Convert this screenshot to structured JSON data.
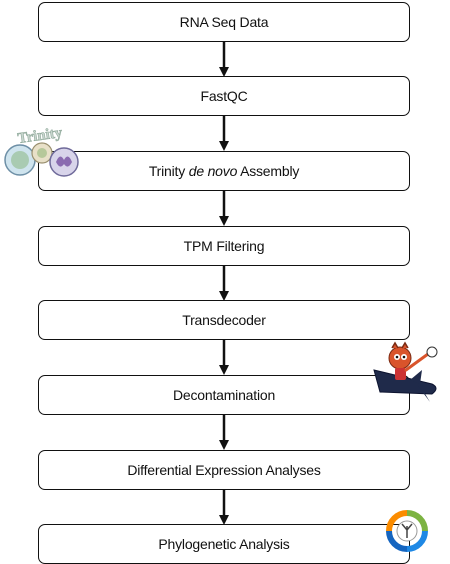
{
  "steps": [
    {
      "id": "rna-seq-data",
      "label": "RNA Seq Data"
    },
    {
      "id": "fastqc",
      "label": "FastQC"
    },
    {
      "id": "trinity",
      "label_pre": "Trinity ",
      "label_em": "de novo",
      "label_post": " Assembly"
    },
    {
      "id": "tpm-filtering",
      "label": "TPM Filtering"
    },
    {
      "id": "transdecoder",
      "label": "Transdecoder"
    },
    {
      "id": "decontamination",
      "label": "Decontamination"
    },
    {
      "id": "differential-expression",
      "label": "Differential Expression Analyses"
    },
    {
      "id": "phylogenetic-analysis",
      "label": "Phylogenetic Analysis"
    }
  ],
  "logos": {
    "trinity": {
      "text": "Trinity",
      "icon": "trinity-logo"
    },
    "rocket": {
      "icon": "rocket-mascot-icon"
    },
    "phylo": {
      "icon": "phylogeny-tree-icon"
    }
  },
  "colors": {
    "border": "#111111",
    "arrow": "#111111"
  }
}
